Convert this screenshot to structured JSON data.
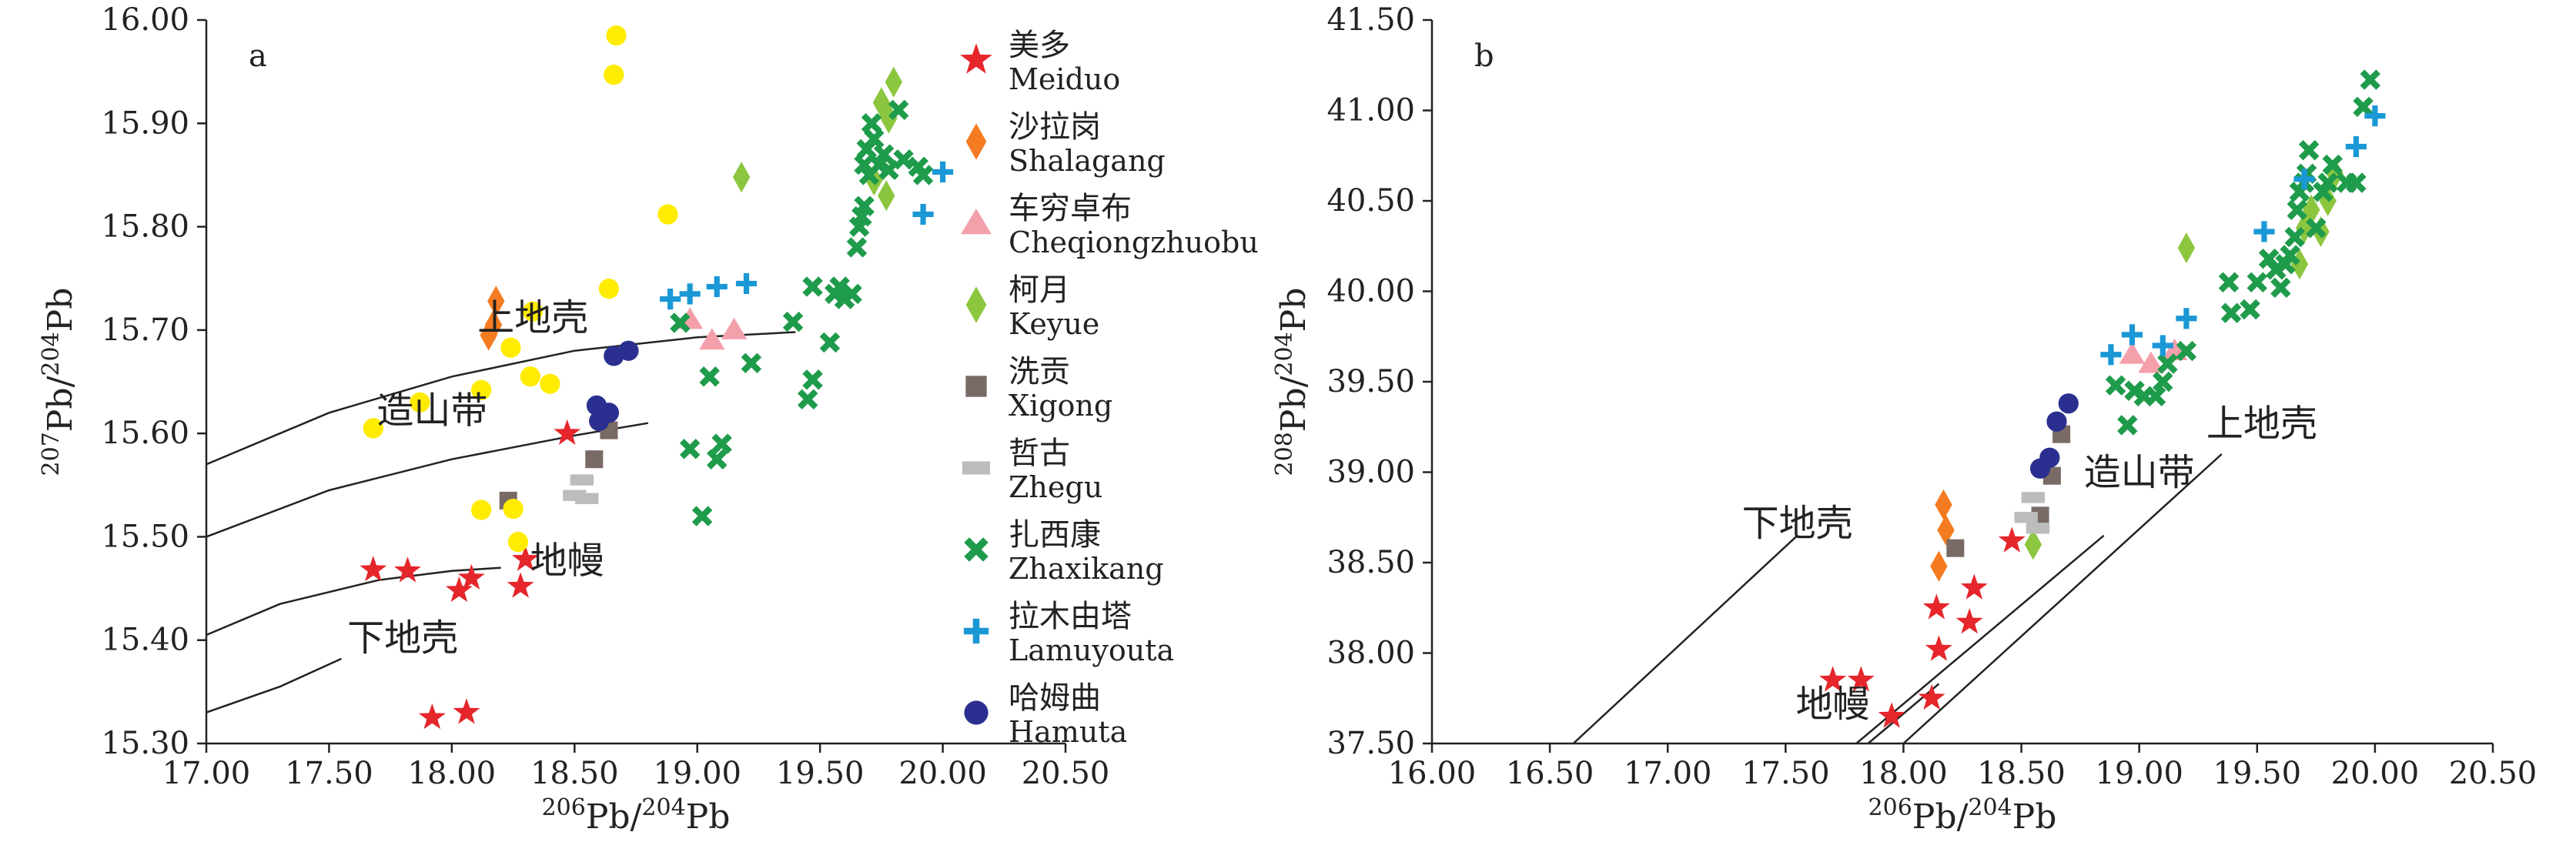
{
  "figure": {
    "legend": [
      {
        "key": "meiduo",
        "zh": "美多",
        "en": "Meiduo",
        "shape": "star",
        "color": "#e5262b"
      },
      {
        "key": "shalagang",
        "zh": "沙拉岗",
        "en": "Shalagang",
        "shape": "diamond",
        "color": "#f47b20"
      },
      {
        "key": "cheqiongzhuobu",
        "zh": "车穷卓布",
        "en": "Cheqiongzhuobu",
        "shape": "triangle",
        "color": "#f4a0ab"
      },
      {
        "key": "keyue",
        "zh": "柯月",
        "en": "Keyue",
        "shape": "diamond",
        "color": "#8cc63f"
      },
      {
        "key": "xigong",
        "zh": "洗贡",
        "en": "Xigong",
        "shape": "square",
        "color": "#7a6a65"
      },
      {
        "key": "zhegu",
        "zh": "哲古",
        "en": "Zhegu",
        "shape": "rect",
        "color": "#bcbcbc"
      },
      {
        "key": "zhaxikang",
        "zh": "扎西康",
        "en": "Zhaxikang",
        "shape": "x",
        "color": "#1e9b4b"
      },
      {
        "key": "lamuyouta",
        "zh": "拉木由塔",
        "en": "Lamuyouta",
        "shape": "plus",
        "color": "#1a98d5"
      },
      {
        "key": "hamuta",
        "zh": "哈姆曲",
        "en": "Hamuta",
        "shape": "circle",
        "color": "#2b2f8f"
      },
      {
        "key": "yellow",
        "zh": "",
        "en": "",
        "shape": "circle",
        "color": "#ffec00"
      }
    ]
  },
  "chart_data": [
    {
      "type": "scatter",
      "panel_label": "a",
      "xlabel_sup": "206",
      "xlabel_main": "Pb/",
      "xlabel_sup2": "204",
      "xlabel_tail": "Pb",
      "ylabel_sup": "207",
      "ylabel_main": "Pb/",
      "ylabel_sup2": "204",
      "ylabel_tail": "Pb",
      "xlim": [
        17.0,
        20.5
      ],
      "ylim": [
        15.3,
        16.0
      ],
      "xticks": [
        "17.00",
        "17.50",
        "18.00",
        "18.50",
        "19.00",
        "19.50",
        "20.00",
        "20.50"
      ],
      "yticks": [
        "15.30",
        "15.40",
        "15.50",
        "15.60",
        "15.70",
        "15.80",
        "15.90",
        "16.00"
      ],
      "curves": [
        {
          "name": "上地壳",
          "points": [
            [
              17.0,
              15.57
            ],
            [
              17.5,
              15.62
            ],
            [
              18.0,
              15.655
            ],
            [
              18.5,
              15.68
            ],
            [
              19.0,
              15.693
            ],
            [
              19.4,
              15.698
            ]
          ]
        },
        {
          "name": "造山带",
          "points": [
            [
              17.0,
              15.5
            ],
            [
              17.5,
              15.545
            ],
            [
              18.0,
              15.575
            ],
            [
              18.5,
              15.598
            ],
            [
              18.8,
              15.61
            ]
          ]
        },
        {
          "name": "地幔",
          "points": [
            [
              17.0,
              15.405
            ],
            [
              17.3,
              15.435
            ],
            [
              17.7,
              15.458
            ],
            [
              18.0,
              15.467
            ],
            [
              18.2,
              15.47
            ]
          ]
        },
        {
          "name": "下地壳",
          "points": [
            [
              17.0,
              15.33
            ],
            [
              17.3,
              15.355
            ],
            [
              17.55,
              15.382
            ]
          ]
        }
      ],
      "annotations": [
        {
          "text": "上地壳",
          "x": 18.33,
          "y": 15.7
        },
        {
          "text": "造山带",
          "x": 17.92,
          "y": 15.61
        },
        {
          "text": "地幔",
          "x": 18.47,
          "y": 15.465
        },
        {
          "text": "下地壳",
          "x": 17.8,
          "y": 15.39
        }
      ],
      "series": [
        {
          "key": "meiduo",
          "points": [
            [
              17.68,
              15.468
            ],
            [
              17.82,
              15.467
            ],
            [
              17.92,
              15.325
            ],
            [
              18.03,
              15.448
            ],
            [
              18.06,
              15.33
            ],
            [
              18.08,
              15.46
            ],
            [
              18.28,
              15.452
            ],
            [
              18.3,
              15.478
            ],
            [
              18.47,
              15.6
            ]
          ]
        },
        {
          "key": "shalagang",
          "points": [
            [
              18.15,
              15.695
            ],
            [
              18.17,
              15.705
            ],
            [
              18.18,
              15.728
            ]
          ]
        },
        {
          "key": "cheqiongzhuobu",
          "points": [
            [
              18.97,
              15.71
            ],
            [
              19.06,
              15.69
            ],
            [
              19.15,
              15.7
            ]
          ]
        },
        {
          "key": "keyue",
          "points": [
            [
              19.18,
              15.848
            ],
            [
              19.72,
              15.845
            ],
            [
              19.75,
              15.92
            ],
            [
              19.77,
              15.83
            ],
            [
              19.8,
              15.94
            ],
            [
              19.78,
              15.905
            ]
          ]
        },
        {
          "key": "xigong",
          "points": [
            [
              18.23,
              15.535
            ],
            [
              18.58,
              15.575
            ],
            [
              18.64,
              15.603
            ]
          ]
        },
        {
          "key": "zhegu",
          "points": [
            [
              18.5,
              15.54
            ],
            [
              18.53,
              15.555
            ],
            [
              18.55,
              15.537
            ]
          ]
        },
        {
          "key": "zhaxikang",
          "points": [
            [
              18.93,
              15.707
            ],
            [
              18.97,
              15.585
            ],
            [
              19.02,
              15.52
            ],
            [
              19.05,
              15.655
            ],
            [
              19.08,
              15.575
            ],
            [
              19.1,
              15.59
            ],
            [
              19.22,
              15.668
            ],
            [
              19.39,
              15.708
            ],
            [
              19.45,
              15.633
            ],
            [
              19.47,
              15.652
            ],
            [
              19.47,
              15.742
            ],
            [
              19.54,
              15.688
            ],
            [
              19.56,
              15.735
            ],
            [
              19.58,
              15.742
            ],
            [
              19.6,
              15.73
            ],
            [
              19.63,
              15.735
            ],
            [
              19.65,
              15.78
            ],
            [
              19.66,
              15.8
            ],
            [
              19.67,
              15.81
            ],
            [
              19.68,
              15.86
            ],
            [
              19.69,
              15.875
            ],
            [
              19.7,
              15.85
            ],
            [
              19.71,
              15.9
            ],
            [
              19.72,
              15.885
            ],
            [
              19.74,
              15.86
            ],
            [
              19.76,
              15.87
            ],
            [
              19.78,
              15.855
            ],
            [
              19.82,
              15.913
            ],
            [
              19.84,
              15.865
            ],
            [
              19.9,
              15.858
            ],
            [
              19.92,
              15.85
            ],
            [
              19.68,
              15.82
            ]
          ]
        },
        {
          "key": "lamuyouta",
          "points": [
            [
              18.89,
              15.73
            ],
            [
              18.97,
              15.735
            ],
            [
              19.08,
              15.742
            ],
            [
              19.2,
              15.745
            ],
            [
              19.92,
              15.812
            ],
            [
              20.0,
              15.853
            ]
          ]
        },
        {
          "key": "hamuta",
          "points": [
            [
              18.59,
              15.627
            ],
            [
              18.6,
              15.612
            ],
            [
              18.64,
              15.62
            ],
            [
              18.66,
              15.675
            ],
            [
              18.72,
              15.68
            ]
          ]
        },
        {
          "key": "yellow",
          "points": [
            [
              17.68,
              15.605
            ],
            [
              17.87,
              15.63
            ],
            [
              18.12,
              15.642
            ],
            [
              18.12,
              15.526
            ],
            [
              18.24,
              15.683
            ],
            [
              18.25,
              15.527
            ],
            [
              18.27,
              15.495
            ],
            [
              18.32,
              15.655
            ],
            [
              18.33,
              15.718
            ],
            [
              18.4,
              15.648
            ],
            [
              18.64,
              15.74
            ],
            [
              18.66,
              15.947
            ],
            [
              18.67,
              15.985
            ],
            [
              18.88,
              15.812
            ]
          ]
        }
      ]
    },
    {
      "type": "scatter",
      "panel_label": "b",
      "xlabel_sup": "206",
      "xlabel_main": "Pb/",
      "xlabel_sup2": "204",
      "xlabel_tail": "Pb",
      "ylabel_sup": "208",
      "ylabel_main": "Pb/",
      "ylabel_sup2": "204",
      "ylabel_tail": "Pb",
      "xlim": [
        16.0,
        20.5
      ],
      "ylim": [
        37.5,
        41.5
      ],
      "xticks": [
        "16.00",
        "16.50",
        "17.00",
        "17.50",
        "18.00",
        "18.50",
        "19.00",
        "19.50",
        "20.00",
        "20.50"
      ],
      "yticks": [
        "37.50",
        "38.00",
        "38.50",
        "39.00",
        "39.50",
        "40.00",
        "40.50",
        "41.00",
        "41.50"
      ],
      "curves": [
        {
          "name": "下地壳",
          "points": [
            [
              16.6,
              37.5
            ],
            [
              17.55,
              38.65
            ]
          ]
        },
        {
          "name": "造山带",
          "points": [
            [
              17.8,
              37.5
            ],
            [
              18.85,
              38.65
            ]
          ]
        },
        {
          "name": "地幔",
          "points": [
            [
              17.85,
              37.5
            ],
            [
              18.15,
              37.83
            ]
          ]
        },
        {
          "name": "上地壳",
          "points": [
            [
              18.0,
              37.5
            ],
            [
              19.35,
              39.1
            ]
          ]
        }
      ],
      "annotations": [
        {
          "text": "下地壳",
          "x": 17.55,
          "y": 38.65
        },
        {
          "text": "造山带",
          "x": 19.0,
          "y": 38.93
        },
        {
          "text": "上地壳",
          "x": 19.52,
          "y": 39.2
        },
        {
          "text": "地幔",
          "x": 17.7,
          "y": 37.65
        }
      ],
      "series": [
        {
          "key": "meiduo",
          "points": [
            [
              17.7,
              37.85
            ],
            [
              17.82,
              37.85
            ],
            [
              17.95,
              37.65
            ],
            [
              18.12,
              37.75
            ],
            [
              18.14,
              38.25
            ],
            [
              18.15,
              38.02
            ],
            [
              18.28,
              38.17
            ],
            [
              18.3,
              38.36
            ],
            [
              18.46,
              38.62
            ]
          ]
        },
        {
          "key": "shalagang",
          "points": [
            [
              18.15,
              38.48
            ],
            [
              18.17,
              38.82
            ],
            [
              18.18,
              38.68
            ]
          ]
        },
        {
          "key": "cheqiongzhuobu",
          "points": [
            [
              18.97,
              39.65
            ],
            [
              19.05,
              39.6
            ],
            [
              19.15,
              39.67
            ]
          ]
        },
        {
          "key": "keyue",
          "points": [
            [
              18.55,
              38.6
            ],
            [
              19.2,
              40.24
            ],
            [
              19.68,
              40.15
            ],
            [
              19.7,
              40.35
            ],
            [
              19.73,
              40.45
            ],
            [
              19.77,
              40.33
            ],
            [
              19.8,
              40.5
            ],
            [
              19.83,
              40.65
            ]
          ]
        },
        {
          "key": "xigong",
          "points": [
            [
              18.22,
              38.58
            ],
            [
              18.58,
              38.76
            ],
            [
              18.63,
              38.98
            ],
            [
              18.67,
              39.21
            ]
          ]
        },
        {
          "key": "zhegu",
          "points": [
            [
              18.52,
              38.75
            ],
            [
              18.55,
              38.86
            ],
            [
              18.57,
              38.69
            ]
          ]
        },
        {
          "key": "zhaxikang",
          "points": [
            [
              18.9,
              39.48
            ],
            [
              18.95,
              39.26
            ],
            [
              18.98,
              39.45
            ],
            [
              19.02,
              39.42
            ],
            [
              19.07,
              39.42
            ],
            [
              19.1,
              39.5
            ],
            [
              19.12,
              39.6
            ],
            [
              19.2,
              39.67
            ],
            [
              19.38,
              40.05
            ],
            [
              19.39,
              39.88
            ],
            [
              19.47,
              39.9
            ],
            [
              19.5,
              40.05
            ],
            [
              19.55,
              40.18
            ],
            [
              19.58,
              40.12
            ],
            [
              19.6,
              40.02
            ],
            [
              19.62,
              40.15
            ],
            [
              19.64,
              40.2
            ],
            [
              19.66,
              40.3
            ],
            [
              19.67,
              40.45
            ],
            [
              19.68,
              40.55
            ],
            [
              19.7,
              40.6
            ],
            [
              19.71,
              40.65
            ],
            [
              19.72,
              40.78
            ],
            [
              19.75,
              40.35
            ],
            [
              19.78,
              40.55
            ],
            [
              19.8,
              40.6
            ],
            [
              19.82,
              40.7
            ],
            [
              19.88,
              40.6
            ],
            [
              19.92,
              40.6
            ],
            [
              19.95,
              41.02
            ],
            [
              19.98,
              41.17
            ]
          ]
        },
        {
          "key": "lamuyouta",
          "points": [
            [
              18.88,
              39.65
            ],
            [
              18.97,
              39.76
            ],
            [
              19.1,
              39.7
            ],
            [
              19.2,
              39.85
            ],
            [
              19.53,
              40.33
            ],
            [
              19.7,
              40.62
            ],
            [
              19.92,
              40.8
            ],
            [
              20.0,
              40.97
            ]
          ]
        },
        {
          "key": "hamuta",
          "points": [
            [
              18.58,
              39.02
            ],
            [
              18.62,
              39.08
            ],
            [
              18.65,
              39.28
            ],
            [
              18.7,
              39.38
            ]
          ]
        }
      ]
    }
  ]
}
